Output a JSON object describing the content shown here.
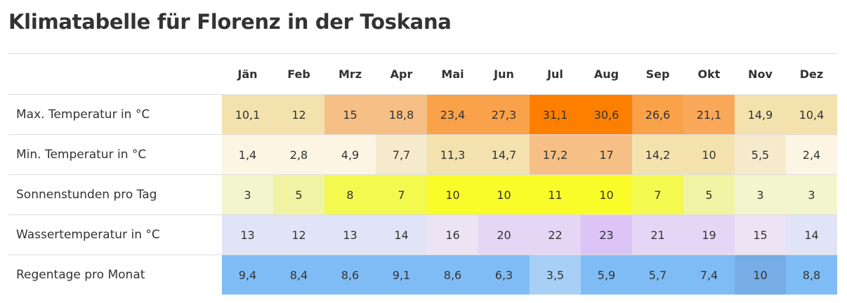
{
  "title": "Klimatabelle für Florenz in der Toskana",
  "months": [
    "Jän",
    "Feb",
    "Mrz",
    "Apr",
    "Mai",
    "Jun",
    "Jul",
    "Aug",
    "Sep",
    "Okt",
    "Nov",
    "Dez"
  ],
  "rows": [
    {
      "label": "Max. Temperatur in °C",
      "values": [
        "10,1",
        "12",
        "15",
        "18,8",
        "23,4",
        "27,3",
        "31,1",
        "30,6",
        "26,6",
        "21,1",
        "14,9",
        "10,4"
      ],
      "colors": [
        "#f3e2ad",
        "#f3e2ad",
        "#f5bf85",
        "#f5bf85",
        "#f9a24a",
        "#f9a24a",
        "#fc7f00",
        "#fc7f00",
        "#f9a24a",
        "#faa85a",
        "#f3e2ad",
        "#f3e2ad"
      ]
    },
    {
      "label": "Min. Temperatur in °C",
      "values": [
        "1,4",
        "2,8",
        "4,9",
        "7,7",
        "11,3",
        "14,7",
        "17,2",
        "17",
        "14,2",
        "10",
        "5,5",
        "2,4"
      ],
      "colors": [
        "#fdf5e3",
        "#fdf5e3",
        "#fdf5e3",
        "#f5eacc",
        "#f3e2ad",
        "#f3e2ad",
        "#f5bf85",
        "#f5bf85",
        "#f3e2ad",
        "#f3e2ad",
        "#f5eacc",
        "#fdf5e3"
      ]
    },
    {
      "label": "Sonnenstunden pro Tag",
      "values": [
        "3",
        "5",
        "8",
        "7",
        "10",
        "10",
        "11",
        "10",
        "7",
        "5",
        "3",
        "3"
      ],
      "colors": [
        "#f3f5cf",
        "#f0f3a3",
        "#f4f950",
        "#f4f950",
        "#f9fc28",
        "#f9fc28",
        "#f9fc28",
        "#f9fc28",
        "#f4f950",
        "#f0f3a3",
        "#f3f5cf",
        "#f3f5cf"
      ]
    },
    {
      "label": "Wassertemperatur in °C",
      "values": [
        "13",
        "12",
        "13",
        "14",
        "16",
        "20",
        "22",
        "23",
        "21",
        "19",
        "15",
        "14"
      ],
      "colors": [
        "#e1e3f6",
        "#e1e3f6",
        "#e1e3f6",
        "#e1e3f6",
        "#ece3f5",
        "#e6d6f6",
        "#e6d6f6",
        "#dcc4f6",
        "#e6d6f6",
        "#e6d6f6",
        "#ece3f5",
        "#e1e3f6"
      ]
    },
    {
      "label": "Regentage pro Monat",
      "values": [
        "9,4",
        "8,4",
        "8,6",
        "9,1",
        "8,6",
        "6,3",
        "3,5",
        "5,9",
        "5,7",
        "7,4",
        "10",
        "8,8"
      ],
      "colors": [
        "#7fbcf6",
        "#7fbcf6",
        "#7fbcf6",
        "#7fbcf6",
        "#7fbcf6",
        "#7fbcf6",
        "#a8d0f6",
        "#7fbcf6",
        "#7fbcf6",
        "#7fbcf6",
        "#76ade4",
        "#7fbcf6"
      ]
    }
  ]
}
